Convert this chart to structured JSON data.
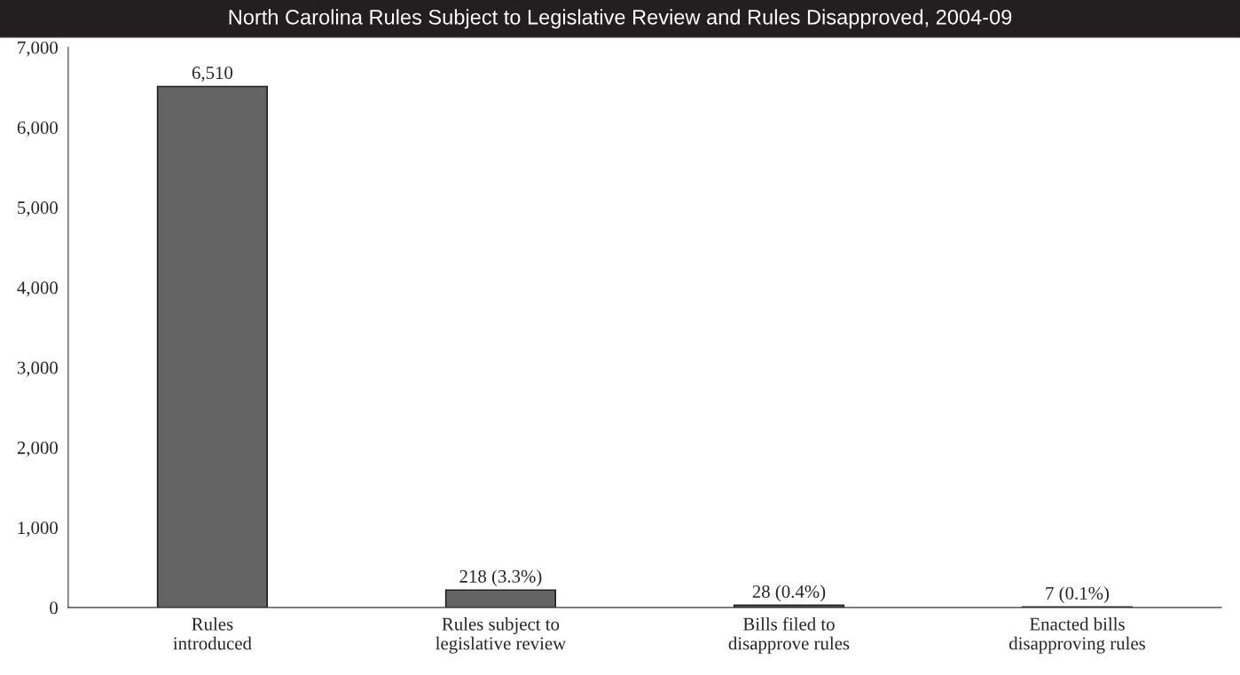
{
  "chart_data": {
    "type": "bar",
    "title": "North Carolina Rules Subject to Legislative Review and Rules Disapproved, 2004-09",
    "categories": [
      "Rules\nintroduced",
      "Rules subject to\nlegislative review",
      "Bills filed to\ndisapprove rules",
      "Enacted bills\ndisapproving rules"
    ],
    "values": [
      6510,
      218,
      28,
      7
    ],
    "value_labels": [
      "6,510",
      "218 (3.3%)",
      "28 (0.4%)",
      "7 (0.1%)"
    ],
    "color": "#646464",
    "ylim": [
      0,
      7000
    ],
    "yticks": [
      0,
      {
        "value": 1000,
        "label": "1,000"
      },
      {
        "value": 2000,
        "label": "2,000"
      },
      {
        "value": 3000,
        "label": "3,000"
      },
      {
        "value": 4000,
        "label": "4,000"
      },
      {
        "value": 5000,
        "label": "5,000"
      },
      {
        "value": 6000,
        "label": "6,000"
      },
      {
        "value": 7000,
        "label": "7,000"
      }
    ],
    "grid": false,
    "legend": false
  }
}
